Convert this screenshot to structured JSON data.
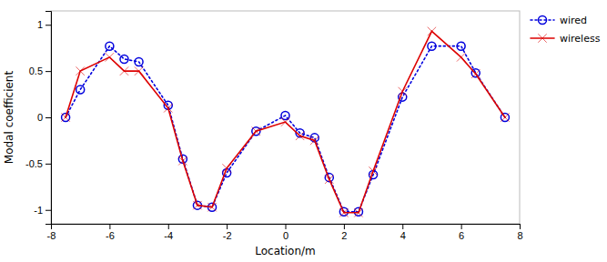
{
  "chart_data": {
    "type": "line",
    "x": [
      -7.5,
      -7.0,
      -6.0,
      -5.5,
      -5.0,
      -4.0,
      -3.5,
      -3.0,
      -2.5,
      -2.0,
      -1.0,
      0.0,
      0.5,
      1.0,
      1.5,
      2.0,
      2.5,
      3.0,
      4.0,
      5.0,
      6.0,
      6.5,
      7.5
    ],
    "series": [
      {
        "name": "wired",
        "color": "#0000dd",
        "marker": "circle",
        "line_style": "dotted",
        "values": [
          0.0,
          0.3,
          0.77,
          0.63,
          0.6,
          0.13,
          -0.45,
          -0.95,
          -0.97,
          -0.6,
          -0.15,
          0.02,
          -0.17,
          -0.22,
          -0.65,
          -1.02,
          -1.02,
          -0.62,
          0.22,
          0.77,
          0.77,
          0.48,
          0.0
        ]
      },
      {
        "name": "wireless",
        "color": "#dd0000",
        "marker": "x",
        "line_style": "solid",
        "values": [
          0.0,
          0.5,
          0.65,
          0.5,
          0.5,
          0.1,
          -0.47,
          -0.95,
          -0.97,
          -0.55,
          -0.15,
          -0.05,
          -0.2,
          -0.25,
          -0.67,
          -1.03,
          -1.03,
          -0.58,
          0.28,
          0.93,
          0.65,
          0.47,
          0.0
        ]
      }
    ],
    "xlabel": "Location/m",
    "ylabel": "Modal coefficient",
    "xlim": [
      -8,
      8
    ],
    "ylim": [
      -1.15,
      1.15
    ],
    "xticks": [
      -8,
      -6,
      -4,
      -2,
      0,
      2,
      4,
      6,
      8
    ],
    "yticks": [
      -1,
      -0.5,
      0,
      0.5,
      1
    ],
    "grid": false,
    "legend": "upper right"
  }
}
